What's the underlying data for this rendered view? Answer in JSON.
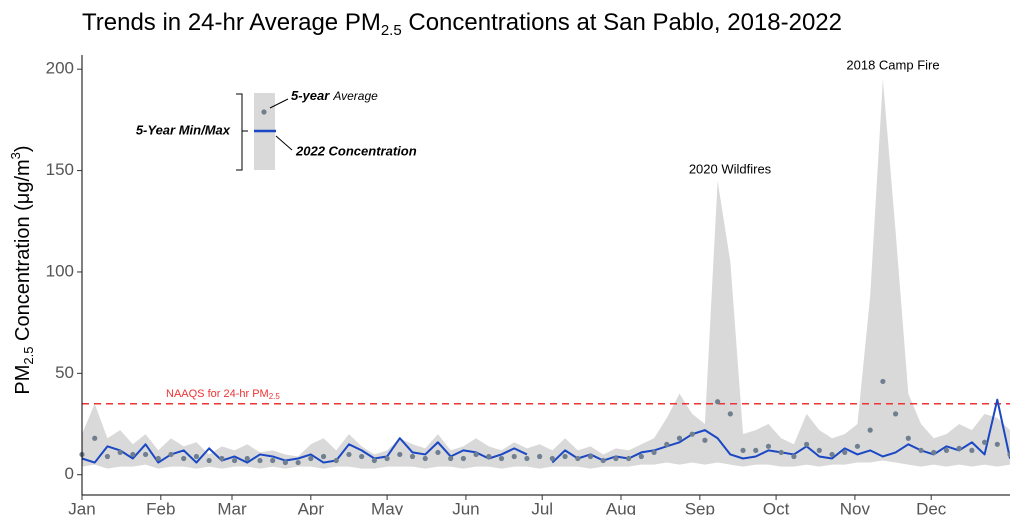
{
  "chart_data": {
    "type": "band-line",
    "title_parts": [
      "Trends in 24-hr Average PM",
      "2.5",
      " Concentrations at San Pablo, 2018-2022"
    ],
    "y_label_parts": [
      "PM",
      "2.5",
      " Concentration (μg/m",
      "3",
      ")"
    ],
    "x": [
      1,
      6,
      11,
      16,
      21,
      26,
      31,
      36,
      41,
      46,
      51,
      56,
      61,
      66,
      71,
      76,
      81,
      86,
      91,
      96,
      101,
      106,
      111,
      116,
      121,
      126,
      131,
      136,
      141,
      146,
      151,
      156,
      161,
      166,
      171,
      176,
      181,
      186,
      191,
      196,
      201,
      206,
      211,
      216,
      221,
      226,
      231,
      236,
      241,
      246,
      251,
      256,
      261,
      266,
      271,
      276,
      281,
      286,
      291,
      296,
      301,
      306,
      311,
      316,
      321,
      326,
      331,
      336,
      341,
      346,
      351,
      356,
      361,
      366
    ],
    "xlim": [
      1,
      366
    ],
    "xticks": [
      {
        "value": 1,
        "label": "Jan"
      },
      {
        "value": 32,
        "label": "Feb"
      },
      {
        "value": 60,
        "label": "Mar"
      },
      {
        "value": 91,
        "label": "Apr"
      },
      {
        "value": 121,
        "label": "May"
      },
      {
        "value": 152,
        "label": "Jun"
      },
      {
        "value": 182,
        "label": "Jul"
      },
      {
        "value": 213,
        "label": "Aug"
      },
      {
        "value": 244,
        "label": "Sep"
      },
      {
        "value": 274,
        "label": "Oct"
      },
      {
        "value": 305,
        "label": "Nov"
      },
      {
        "value": 335,
        "label": "Dec"
      }
    ],
    "ylim": [
      -10,
      207
    ],
    "yticks": [
      0,
      50,
      100,
      150,
      200
    ],
    "grid": false,
    "series": [
      {
        "name": "5-Year Min/Max",
        "color": "#d9d9d9",
        "low": [
          4,
          5,
          3,
          4,
          4,
          5,
          3,
          4,
          4,
          3,
          4,
          3,
          4,
          4,
          3,
          4,
          3,
          4,
          4,
          3,
          4,
          4,
          3,
          3,
          4,
          4,
          4,
          3,
          4,
          4,
          3,
          4,
          4,
          3,
          4,
          4,
          3,
          4,
          4,
          4,
          3,
          4,
          4,
          4,
          5,
          5,
          6,
          5,
          6,
          5,
          6,
          5,
          4,
          5,
          5,
          4,
          4,
          5,
          4,
          5,
          5,
          6,
          6,
          7,
          6,
          5,
          4,
          5,
          4,
          5,
          4,
          5,
          4,
          5
        ],
        "high": [
          20,
          35,
          18,
          22,
          15,
          20,
          12,
          18,
          14,
          16,
          10,
          14,
          12,
          15,
          11,
          12,
          10,
          9,
          15,
          18,
          12,
          20,
          14,
          10,
          12,
          18,
          15,
          13,
          20,
          12,
          14,
          18,
          14,
          12,
          16,
          13,
          15,
          12,
          18,
          12,
          14,
          10,
          13,
          12,
          15,
          18,
          28,
          40,
          30,
          25,
          145,
          105,
          20,
          22,
          25,
          18,
          15,
          30,
          22,
          18,
          20,
          25,
          88,
          195,
          120,
          40,
          25,
          18,
          20,
          25,
          22,
          30,
          28,
          22
        ]
      },
      {
        "name_parts": [
          "5-year",
          "Average"
        ],
        "color": "#6f7f8f",
        "values": [
          10,
          18,
          9,
          11,
          10,
          10,
          8,
          10,
          8,
          9,
          7,
          8,
          7,
          8,
          7,
          7,
          6,
          6,
          8,
          9,
          7,
          10,
          9,
          7,
          8,
          10,
          9,
          8,
          11,
          8,
          8,
          10,
          9,
          8,
          9,
          8,
          9,
          8,
          9,
          8,
          9,
          7,
          8,
          8,
          9,
          11,
          15,
          18,
          20,
          17,
          36,
          30,
          12,
          12,
          14,
          11,
          9,
          15,
          12,
          10,
          11,
          14,
          22,
          46,
          30,
          18,
          12,
          11,
          12,
          13,
          12,
          16,
          15,
          10
        ]
      },
      {
        "name": "2022 Concentration",
        "color": "#1a47c4",
        "values": [
          8,
          6,
          14,
          12,
          8,
          15,
          6,
          10,
          12,
          6,
          13,
          7,
          9,
          6,
          10,
          9,
          7,
          8,
          10,
          6,
          7,
          15,
          12,
          8,
          9,
          18,
          11,
          10,
          16,
          9,
          12,
          11,
          8,
          10,
          13,
          10,
          null,
          6,
          12,
          8,
          10,
          7,
          9,
          8,
          11,
          12,
          14,
          16,
          20,
          22,
          18,
          10,
          8,
          9,
          12,
          11,
          10,
          14,
          9,
          8,
          13,
          10,
          12,
          9,
          11,
          15,
          12,
          10,
          14,
          12,
          16,
          10,
          37,
          8
        ]
      }
    ],
    "reference_line": {
      "value": 35,
      "color": "#ee3333",
      "label_parts": [
        "NAAQS for 24-hr PM",
        "2.5"
      ]
    },
    "annotations": [
      "2020 Wildfires",
      "2018 Camp Fire"
    ]
  }
}
